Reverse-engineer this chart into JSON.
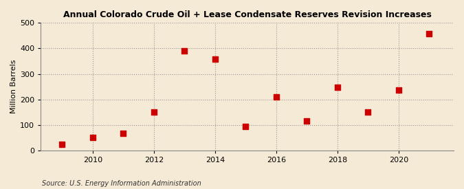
{
  "title": "Annual Colorado Crude Oil + Lease Condensate Reserves Revision Increases",
  "ylabel": "Million Barrels",
  "source": "Source: U.S. Energy Information Administration",
  "background_color": "#f5ead5",
  "plot_background_color": "#f5ead5",
  "marker_color": "#cc0000",
  "marker_size": 28,
  "years": [
    2009,
    2010,
    2011,
    2012,
    2013,
    2014,
    2015,
    2016,
    2017,
    2018,
    2019,
    2020,
    2021
  ],
  "values": [
    25,
    50,
    68,
    150,
    390,
    357,
    93,
    210,
    116,
    249,
    150,
    238,
    458
  ],
  "xlim": [
    2008.3,
    2021.8
  ],
  "ylim": [
    0,
    500
  ],
  "yticks": [
    0,
    100,
    200,
    300,
    400,
    500
  ],
  "xticks": [
    2010,
    2012,
    2014,
    2016,
    2018,
    2020
  ],
  "grid_color": "#999999",
  "grid_style": ":",
  "grid_linewidth": 0.8
}
